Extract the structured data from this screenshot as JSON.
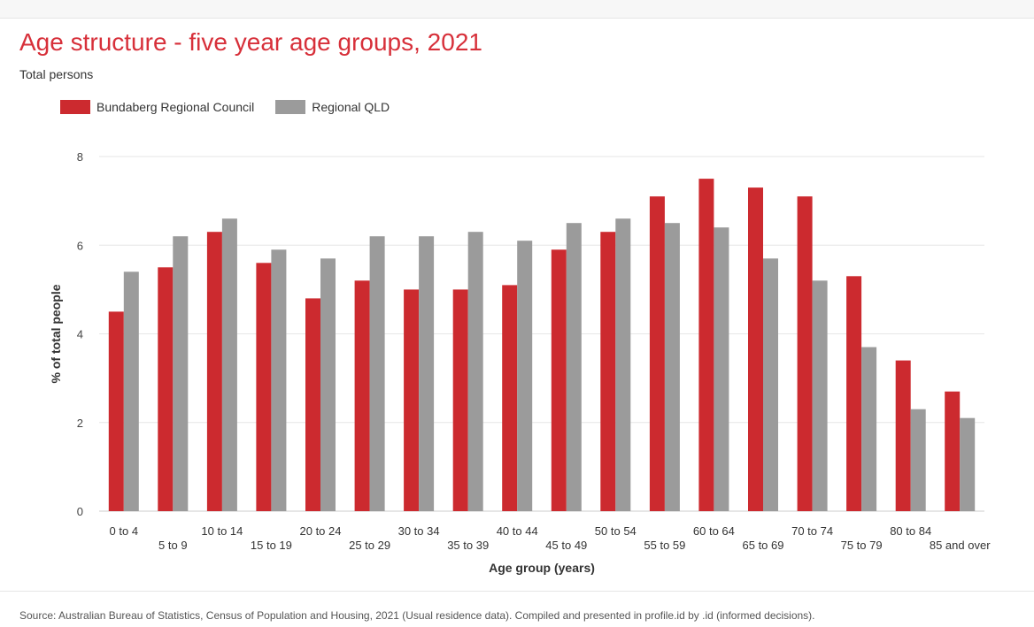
{
  "title": "Age structure - five year age groups, 2021",
  "subtitle": "Total persons",
  "source": "Source: Australian Bureau of Statistics, Census of Population and Housing, 2021 (Usual residence data). Compiled and presented in profile.id by .id (informed decisions).",
  "colors": {
    "title": "#d7303a",
    "series1": "#cc2a2f",
    "series2": "#9b9b9b",
    "grid": "#e6e6e6"
  },
  "chart_data": {
    "type": "bar",
    "xlabel": "Age group (years)",
    "ylabel": "% of total people",
    "ylim": [
      0,
      8
    ],
    "yticks": [
      0,
      2,
      4,
      6,
      8
    ],
    "grid": true,
    "legend_position": "top-left",
    "categories": [
      "0 to 4",
      "5 to 9",
      "10 to 14",
      "15 to 19",
      "20 to 24",
      "25 to 29",
      "30 to 34",
      "35 to 39",
      "40 to 44",
      "45 to 49",
      "50 to 54",
      "55 to 59",
      "60 to 64",
      "65 to 69",
      "70 to 74",
      "75 to 79",
      "80 to 84",
      "85 and over"
    ],
    "series": [
      {
        "name": "Bundaberg Regional Council",
        "color": "#cc2a2f",
        "values": [
          4.5,
          5.5,
          6.3,
          5.6,
          4.8,
          5.2,
          5.0,
          5.0,
          5.1,
          5.9,
          6.3,
          7.1,
          7.5,
          7.3,
          7.1,
          5.3,
          3.4,
          2.7
        ]
      },
      {
        "name": "Regional QLD",
        "color": "#9b9b9b",
        "values": [
          5.4,
          6.2,
          6.6,
          5.9,
          5.7,
          6.2,
          6.2,
          6.3,
          6.1,
          6.5,
          6.6,
          6.5,
          6.4,
          5.7,
          5.2,
          3.7,
          2.3,
          2.1
        ]
      }
    ]
  }
}
